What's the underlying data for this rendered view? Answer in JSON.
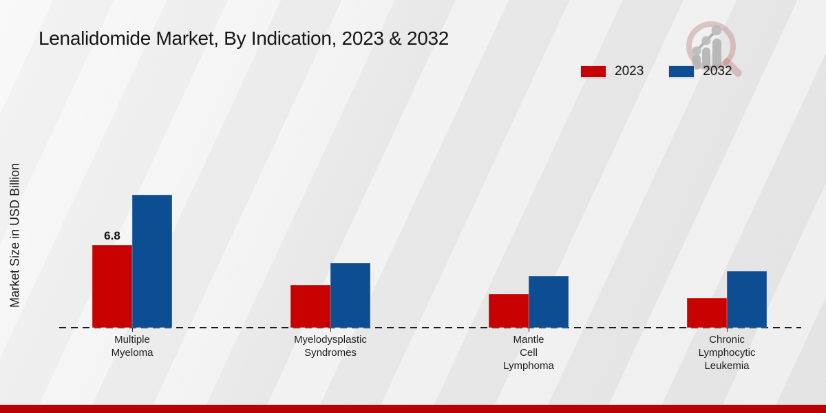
{
  "chart_data": {
    "type": "bar",
    "title": "Lenalidomide Market, By Indication, 2023 & 2032",
    "ylabel": "Market Size in USD Billion",
    "xlabel": "",
    "categories": [
      "Multiple\nMyeloma",
      "Myelodysplastic\nSyndromes",
      "Mantle\nCell\nLymphoma",
      "Chronic\nLymphocytic\nLeukemia"
    ],
    "series": [
      {
        "name": "2023",
        "color": "#c90000",
        "values": [
          6.8,
          3.5,
          2.8,
          2.45
        ]
      },
      {
        "name": "2032",
        "color": "#0d4e92",
        "values": [
          10.93,
          5.3,
          4.25,
          4.65
        ]
      }
    ],
    "data_labels": [
      {
        "series_index": 0,
        "category_index": 0,
        "text": "6.8"
      }
    ],
    "ylim": [
      0,
      12
    ],
    "grid": false,
    "legend_position": "top-right",
    "baseline_style": "dashed"
  },
  "colors": {
    "accent_red": "#c90000",
    "accent_blue": "#0d4e92",
    "bottom_band": "#bb0100",
    "baseline": "#1a1a1a",
    "background": "#e9e9e9"
  },
  "logo": {
    "icon": "magnifier-bar-chart-logo"
  }
}
